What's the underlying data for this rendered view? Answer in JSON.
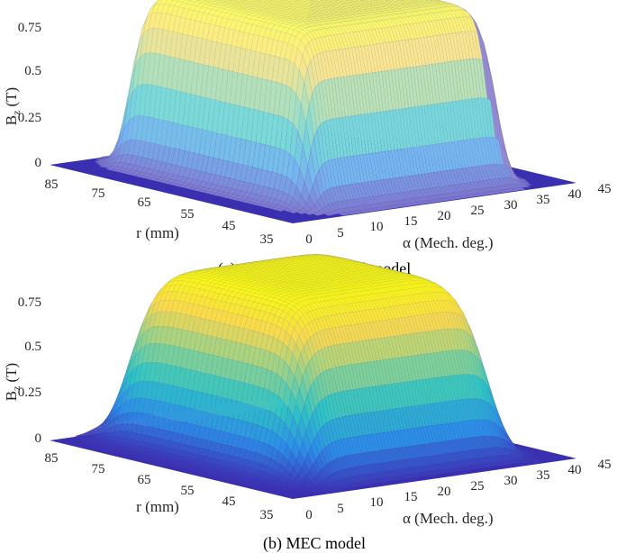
{
  "chart_data": [
    {
      "type": "surface3d",
      "caption": "(a) quasi-3D analytical model",
      "zlabel_main": "B",
      "zlabel_sub": "z",
      "zlabel_unit": "(T)",
      "ylabel": "r (mm)",
      "xlabel": "α (Mech. deg.)",
      "z_ticks": [
        "0",
        "0.25",
        "0.5",
        "0.75"
      ],
      "z_values": [
        0,
        0.25,
        0.5,
        0.75
      ],
      "r_ticks": [
        "85",
        "75",
        "65",
        "55",
        "45",
        "35"
      ],
      "r_values": [
        85,
        75,
        65,
        55,
        45,
        35
      ],
      "alpha_ticks": [
        "0",
        "5",
        "10",
        "15",
        "20",
        "25",
        "30",
        "35",
        "40",
        "45"
      ],
      "alpha_values": [
        0,
        5,
        10,
        15,
        20,
        25,
        30,
        35,
        40,
        45
      ],
      "zlim": [
        0,
        0.75
      ],
      "rlim": [
        35,
        85
      ],
      "alphalim": [
        0,
        45
      ],
      "model": {
        "r_inner": 41,
        "r_outer": 79,
        "alpha_start": 7,
        "alpha_end": 38,
        "peak": 0.75,
        "edge_sharpness": 3.2,
        "interpolated_colors": false
      },
      "colormap": [
        "#3d2fb3",
        "#2c8ce6",
        "#2fc4c4",
        "#8fd18f",
        "#f9d850",
        "#f9fb0e"
      ],
      "grid": false
    },
    {
      "type": "surface3d",
      "caption": "(b) MEC model",
      "zlabel_main": "B",
      "zlabel_sub": "z",
      "zlabel_unit": "(T)",
      "ylabel": "r (mm)",
      "xlabel": "α (Mech. deg.)",
      "z_ticks": [
        "0",
        "0.25",
        "0.5",
        "0.75"
      ],
      "z_values": [
        0,
        0.25,
        0.5,
        0.75
      ],
      "r_ticks": [
        "85",
        "75",
        "65",
        "55",
        "45",
        "35"
      ],
      "r_values": [
        85,
        75,
        65,
        55,
        45,
        35
      ],
      "alpha_ticks": [
        "0",
        "5",
        "10",
        "15",
        "20",
        "25",
        "30",
        "35",
        "40",
        "45"
      ],
      "alpha_values": [
        0,
        5,
        10,
        15,
        20,
        25,
        30,
        35,
        40,
        45
      ],
      "zlim": [
        0,
        0.75
      ],
      "rlim": [
        35,
        85
      ],
      "alphalim": [
        0,
        45
      ],
      "model": {
        "r_inner": 42,
        "r_outer": 80,
        "alpha_start": 7,
        "alpha_end": 38,
        "peak": 0.75,
        "edge_sharpness": 5.5,
        "interpolated_colors": true
      },
      "colormap": [
        "#3d2fb3",
        "#2c8ce6",
        "#2fc4c4",
        "#8fd18f",
        "#f9d850",
        "#f9fb0e"
      ],
      "grid": false
    }
  ]
}
